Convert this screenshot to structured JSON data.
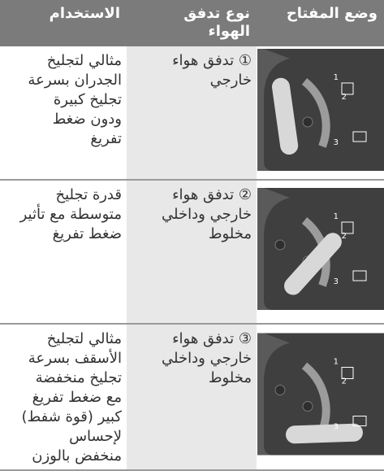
{
  "header": {
    "columns": [
      "وضع المفتاح",
      [
        "نوع تدفق",
        "الهواء"
      ],
      "الاستخدام"
    ]
  },
  "image_labels": [
    "1",
    "2",
    "3"
  ],
  "rows": [
    {
      "airflow": [
        "① تدفق هواء",
        "خارجي"
      ],
      "usage": [
        "مثالي لتجليخ",
        "الجدران بسرعة",
        "تجليخ كبيرة",
        "ودون ضغط",
        "تفريغ"
      ]
    },
    {
      "airflow": [
        "② تدفق هواء",
        "خارجي وداخلي",
        "مخلوط"
      ],
      "usage": [
        "قدرة تجليخ",
        "متوسطة مع تأثير",
        "ضغط تفريغ"
      ]
    },
    {
      "airflow": [
        "③ تدفق هواء",
        "خارجي وداخلي",
        "مخلوط"
      ],
      "usage": [
        "مثالي لتجليخ",
        "الأسقف بسرعة",
        "تجليخ منخفضة",
        "مع ضغط تفريغ",
        "كبير (قوة شفط)",
        "لإحساس",
        "منخفض بالوزن"
      ]
    }
  ]
}
